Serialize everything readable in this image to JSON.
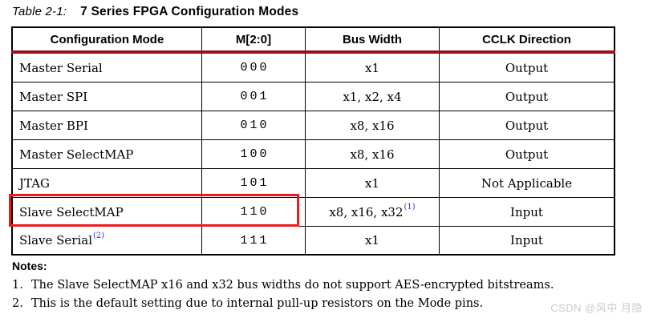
{
  "title": {
    "label": "Table 2-1:",
    "text": "7 Series FPGA Configuration Modes"
  },
  "table": {
    "columns": [
      "Configuration Mode",
      "M[2:0]",
      "Bus Width",
      "CCLK Direction"
    ],
    "rows": [
      {
        "mode": "Master Serial",
        "m": "000",
        "bus": "x1",
        "cclk": "Output"
      },
      {
        "mode": "Master SPI",
        "m": "001",
        "bus": "x1, x2, x4",
        "cclk": "Output"
      },
      {
        "mode": "Master BPI",
        "m": "010",
        "bus": "x8, x16",
        "cclk": "Output"
      },
      {
        "mode": "Master SelectMAP",
        "m": "100",
        "bus": "x8, x16",
        "cclk": "Output"
      },
      {
        "mode": "JTAG",
        "m": "101",
        "bus": "x1",
        "cclk": "Not Applicable"
      },
      {
        "mode": "Slave SelectMAP",
        "m": "110",
        "bus": "x8, x16, x32",
        "bus_note": "(1)",
        "cclk": "Input",
        "highlighted": true
      },
      {
        "mode": "Slave Serial",
        "mode_note": "(2)",
        "m": "111",
        "bus": "x1",
        "cclk": "Input"
      }
    ]
  },
  "notes": {
    "heading": "Notes:",
    "items": [
      {
        "num": "1.",
        "text": "The Slave SelectMAP x16 and x32 bus widths do not support AES-encrypted bitstreams."
      },
      {
        "num": "2.",
        "text": "This is the default setting due to internal pull-up resistors on the Mode pins."
      }
    ]
  },
  "watermark": "CSDN @风中 月隐",
  "colors": {
    "header_rule_red": "#a00d1e",
    "highlight_box_red": "#ec1c1c",
    "footnote_blue": "#3333e0",
    "watermark_gray": "#c9c9c9",
    "grid_black": "#000000"
  }
}
